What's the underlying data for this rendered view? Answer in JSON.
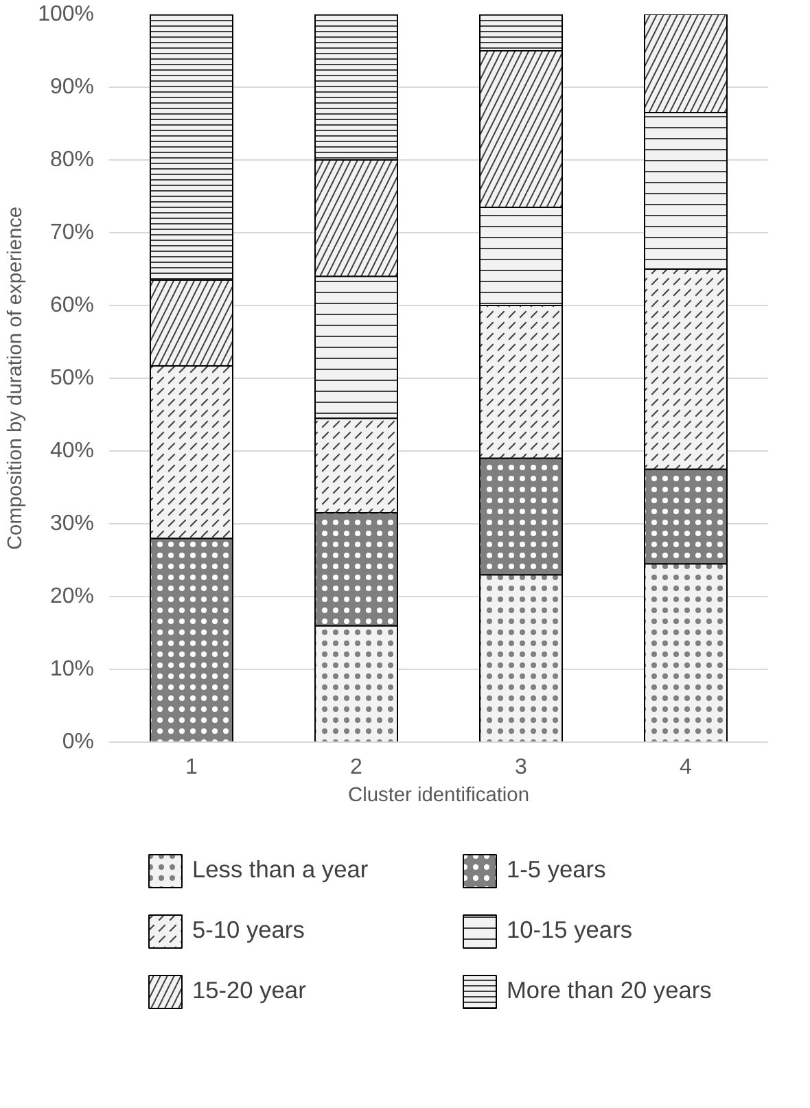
{
  "chart_data": {
    "type": "bar",
    "stacked": true,
    "xlabel": "Cluster identification",
    "ylabel": "Composition by duration of experience",
    "categories": [
      "1",
      "2",
      "3",
      "4"
    ],
    "series": [
      {
        "name": "Less than a year",
        "color": "#f2f2f2",
        "values": [
          0,
          16,
          23,
          24.5
        ]
      },
      {
        "name": "1-5 years",
        "color": "#7f7f7f",
        "values": [
          28,
          15.5,
          16,
          13
        ]
      },
      {
        "name": "5-10 years",
        "color": "#f2f2f2",
        "values": [
          23.7,
          13,
          21,
          27.5
        ]
      },
      {
        "name": "10-15 years",
        "color": "#f2f2f2",
        "values": [
          0,
          19.5,
          13.5,
          21.5
        ]
      },
      {
        "name": "15-20 year",
        "color": "#f2f2f2",
        "values": [
          11.8,
          16,
          21.5,
          13.5
        ]
      },
      {
        "name": "More than 20 years",
        "color": "#f2f2f2",
        "values": [
          36.5,
          20,
          5,
          0
        ]
      }
    ],
    "ylim": [
      0,
      100
    ],
    "yticks": [
      {
        "value": 0,
        "label": "0%"
      },
      {
        "value": 10,
        "label": "10%"
      },
      {
        "value": 20,
        "label": "20%"
      },
      {
        "value": 30,
        "label": "30%"
      },
      {
        "value": 40,
        "label": "40%"
      },
      {
        "value": 50,
        "label": "50%"
      },
      {
        "value": 60,
        "label": "60%"
      },
      {
        "value": 70,
        "label": "70%"
      },
      {
        "value": 80,
        "label": "80%"
      },
      {
        "value": 90,
        "label": "90%"
      },
      {
        "value": 100,
        "label": "100%"
      }
    ],
    "grid": "y",
    "legend": "bottom"
  }
}
